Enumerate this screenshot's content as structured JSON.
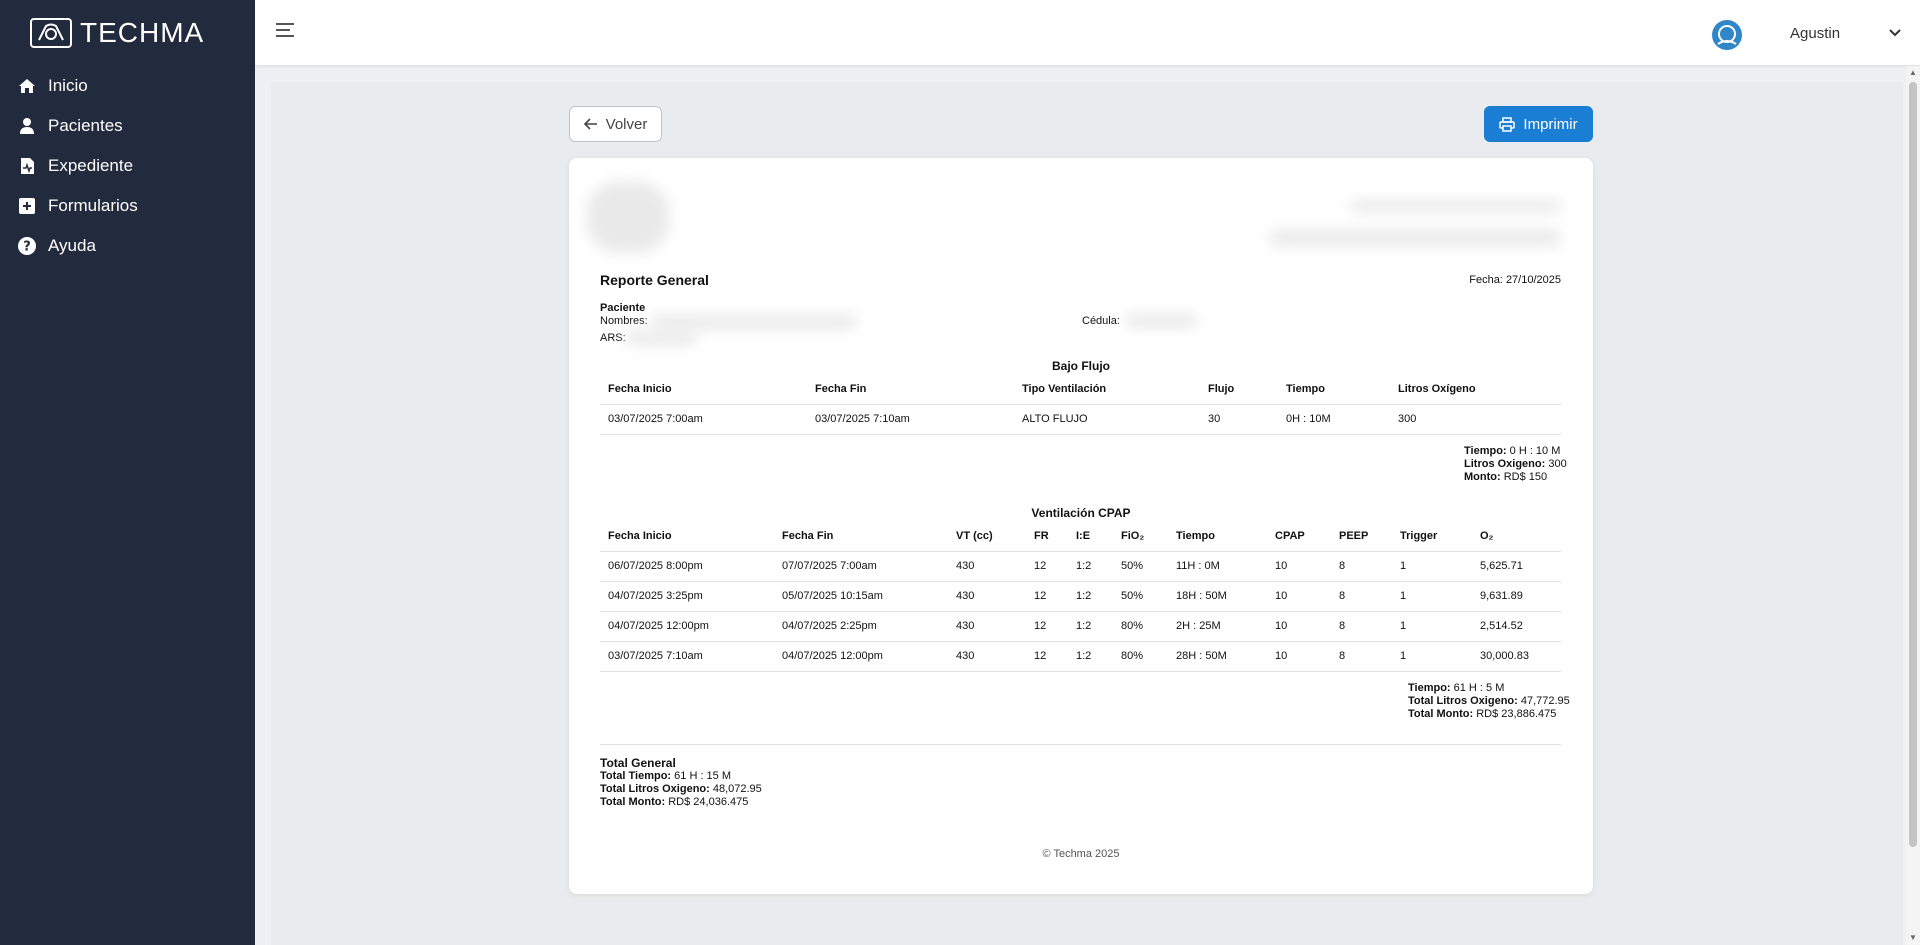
{
  "brand": {
    "name": "TECHMA"
  },
  "sidebar": {
    "items": [
      {
        "label": "Inicio",
        "icon": "home-icon"
      },
      {
        "label": "Pacientes",
        "icon": "user-icon"
      },
      {
        "label": "Expediente",
        "icon": "file-medical-icon"
      },
      {
        "label": "Formularios",
        "icon": "plus-square-icon"
      },
      {
        "label": "Ayuda",
        "icon": "help-circle-icon"
      }
    ]
  },
  "topbar": {
    "username": "Agustin"
  },
  "actions": {
    "back_label": "Volver",
    "print_label": "Imprimir"
  },
  "report": {
    "title": "Reporte General",
    "date_label": "Fecha:",
    "date_value": "27/10/2025",
    "patient_heading": "Paciente",
    "names_label": "Nombres:",
    "cedula_label": "Cédula:",
    "ars_label": "ARS:",
    "low_flow": {
      "title": "Bajo Flujo",
      "headers": [
        "Fecha Inicio",
        "Fecha Fin",
        "Tipo Ventilación",
        "Flujo",
        "Tiempo",
        "Litros Oxígeno"
      ],
      "rows": [
        [
          "03/07/2025 7:00am",
          "03/07/2025 7:10am",
          "ALTO FLUJO",
          "30",
          "0H : 10M",
          "300"
        ]
      ],
      "summary": {
        "time_label": "Tiempo:",
        "time_value": "0 H : 10 M",
        "liters_label": "Litros Oxigeno:",
        "liters_value": "300",
        "amount_label": "Monto:",
        "amount_value": "RD$ 150"
      }
    },
    "cpap": {
      "title": "Ventilación CPAP",
      "headers": [
        "Fecha Inicio",
        "Fecha Fin",
        "VT (cc)",
        "FR",
        "I:E",
        "FiO₂",
        "Tiempo",
        "CPAP",
        "PEEP",
        "Trigger",
        "O₂"
      ],
      "rows": [
        [
          "06/07/2025 8:00pm",
          "07/07/2025 7:00am",
          "430",
          "12",
          "1:2",
          "50%",
          "11H : 0M",
          "10",
          "8",
          "1",
          "5,625.71"
        ],
        [
          "04/07/2025 3:25pm",
          "05/07/2025 10:15am",
          "430",
          "12",
          "1:2",
          "50%",
          "18H : 50M",
          "10",
          "8",
          "1",
          "9,631.89"
        ],
        [
          "04/07/2025 12:00pm",
          "04/07/2025 2:25pm",
          "430",
          "12",
          "1:2",
          "80%",
          "2H : 25M",
          "10",
          "8",
          "1",
          "2,514.52"
        ],
        [
          "03/07/2025 7:10am",
          "04/07/2025 12:00pm",
          "430",
          "12",
          "1:2",
          "80%",
          "28H : 50M",
          "10",
          "8",
          "1",
          "30,000.83"
        ]
      ],
      "summary": {
        "time_label": "Tiempo:",
        "time_value": "61 H : 5 M",
        "liters_label": "Total Litros Oxigeno:",
        "liters_value": "47,772.95",
        "amount_label": "Total Monto:",
        "amount_value": "RD$ 23,886.475"
      }
    },
    "total": {
      "heading": "Total General",
      "time_label": "Total Tiempo:",
      "time_value": "61 H : 15 M",
      "liters_label": "Total Litros Oxigeno:",
      "liters_value": "48,072.95",
      "amount_label": "Total Monto:",
      "amount_value": "RD$ 24,036.475"
    },
    "footer": "© Techma 2025"
  },
  "colors": {
    "sidebar_bg": "#222a3e",
    "primary": "#1a7fd4"
  }
}
